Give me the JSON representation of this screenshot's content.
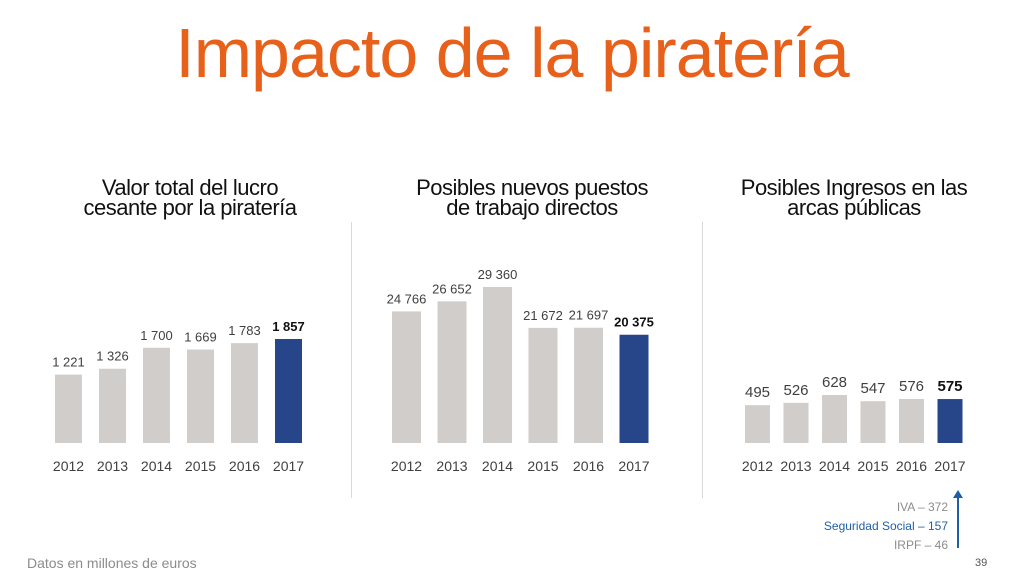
{
  "title": "Impacto de la piratería",
  "footnote": "Datos en millones de euros",
  "page_number": "39",
  "colors": {
    "title": "#E8611A",
    "bar_default": "#D0CDCB",
    "bar_highlight": "#27468A",
    "highlight_text": "#1F5FA8"
  },
  "breakdown": [
    {
      "label": "IVA – 372",
      "highlight": false
    },
    {
      "label": "Seguridad Social – 157",
      "highlight": true
    },
    {
      "label": "IRPF – 46",
      "highlight": false
    }
  ],
  "chart_data": [
    {
      "type": "bar",
      "title": "Valor total del lucro cesante por la piratería",
      "title_lines": [
        "Valor total del lucro",
        "cesante por la piratería"
      ],
      "categories": [
        "2012",
        "2013",
        "2014",
        "2015",
        "2016",
        "2017"
      ],
      "values": [
        1221,
        1326,
        1700,
        1669,
        1783,
        1857
      ],
      "value_labels": [
        "1 221",
        "1 326",
        "1 700",
        "1 669",
        "1 783",
        "1 857"
      ],
      "highlight_index": 5
    },
    {
      "type": "bar",
      "title": "Posibles nuevos puestos de trabajo directos",
      "title_lines": [
        "Posibles nuevos puestos",
        "de trabajo directos"
      ],
      "categories": [
        "2012",
        "2013",
        "2014",
        "2015",
        "2016",
        "2017"
      ],
      "values": [
        24766,
        26652,
        29360,
        21672,
        21697,
        20375
      ],
      "value_labels": [
        "24 766",
        "26 652",
        "29 360",
        "21 672",
        "21 697",
        "20 375"
      ],
      "highlight_index": 5
    },
    {
      "type": "bar",
      "title": "Posibles Ingresos en las arcas públicas",
      "title_lines": [
        "Posibles Ingresos en las",
        "arcas públicas"
      ],
      "categories": [
        "2012",
        "2013",
        "2014",
        "2015",
        "2016",
        "2017"
      ],
      "values": [
        495,
        526,
        628,
        547,
        576,
        575
      ],
      "value_labels": [
        "495",
        "526",
        "628",
        "547",
        "576",
        "575"
      ],
      "highlight_index": 5
    }
  ]
}
